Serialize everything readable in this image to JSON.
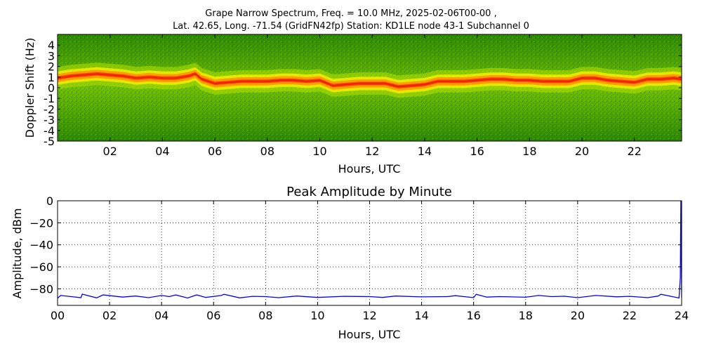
{
  "figure": {
    "title_line1": "Grape Narrow Spectrum, Freq. = 10.0 MHz, 2025-02-06T00-00 ,",
    "title_line2": "Lat.  42.65, Long. -71.54 (GridFN42fp) Station: KD1LE node 43-1 Subchannel 0"
  },
  "chart_data": [
    {
      "type": "heatmap",
      "title": "",
      "xlabel": "Hours, UTC",
      "ylabel": "Doppler Shift (Hz)",
      "xlim": [
        0,
        23.8
      ],
      "ylim": [
        -5,
        5
      ],
      "x_ticks": [
        2,
        4,
        6,
        8,
        10,
        12,
        14,
        16,
        18,
        20,
        22
      ],
      "x_tick_labels": [
        "02",
        "04",
        "06",
        "08",
        "10",
        "12",
        "14",
        "16",
        "18",
        "20",
        "22"
      ],
      "y_ticks": [
        -5,
        -4,
        -3,
        -2,
        -1,
        0,
        1,
        2,
        3,
        4
      ],
      "y_tick_labels": [
        "-5",
        "-4",
        "-3",
        "-2",
        "-1",
        "0",
        "1",
        "2",
        "3",
        "4"
      ],
      "grid": false,
      "colormap": [
        "#0a5a00",
        "#2e8b00",
        "#6fc000",
        "#b6e000",
        "#f2f000",
        "#ff9a00",
        "#ff3a00"
      ],
      "peak_doppler_trace": {
        "hours": [
          0,
          0.5,
          1,
          1.5,
          2,
          2.5,
          3,
          3.5,
          4,
          4.5,
          5,
          5.25,
          5.5,
          6,
          6.5,
          7,
          7.5,
          8,
          8.5,
          9,
          9.5,
          10,
          10.5,
          11,
          11.5,
          12,
          12.5,
          13,
          13.5,
          14,
          14.5,
          15,
          15.5,
          16,
          16.5,
          17,
          17.5,
          18,
          18.5,
          19,
          19.5,
          20,
          20.5,
          21,
          21.5,
          22,
          22.5,
          23,
          23.5,
          23.8
        ],
        "hz": [
          0.9,
          1.1,
          1.2,
          1.3,
          1.2,
          1.1,
          0.9,
          1.0,
          0.9,
          0.9,
          1.1,
          1.3,
          0.8,
          0.4,
          0.5,
          0.6,
          0.6,
          0.6,
          0.7,
          0.7,
          0.6,
          0.7,
          0.2,
          0.3,
          0.4,
          0.4,
          0.4,
          0.1,
          0.2,
          0.3,
          0.6,
          0.6,
          0.6,
          0.7,
          0.8,
          0.8,
          0.7,
          0.7,
          0.6,
          0.6,
          0.6,
          0.9,
          0.9,
          0.7,
          0.6,
          0.5,
          0.8,
          0.8,
          0.9,
          0.8
        ]
      }
    },
    {
      "type": "line",
      "title": "Peak Amplitude by Minute",
      "xlabel": "Hours, UTC",
      "ylabel": "Amplitude, dBm",
      "xlim": [
        0,
        24
      ],
      "ylim": [
        -95,
        0
      ],
      "x_ticks": [
        0,
        2,
        4,
        6,
        8,
        10,
        12,
        14,
        16,
        18,
        20,
        22,
        24
      ],
      "x_tick_labels": [
        "00",
        "02",
        "04",
        "06",
        "08",
        "10",
        "12",
        "14",
        "16",
        "18",
        "20",
        "22",
        "24"
      ],
      "y_ticks": [
        0,
        -20,
        -40,
        -60,
        -80
      ],
      "y_tick_labels": [
        "0",
        "−20",
        "−40",
        "−60",
        "−80"
      ],
      "grid": true,
      "series": [
        {
          "color": "#0000ff",
          "baseline_dbm": -88.5,
          "x": [
            0,
            0.12,
            0.9,
            0.95,
            1.5,
            1.75,
            2.5,
            3.0,
            3.5,
            4.0,
            4.3,
            4.55,
            5.0,
            5.35,
            5.7,
            6.3,
            6.4,
            7.0,
            7.5,
            8.0,
            8.5,
            9.2,
            10.0,
            11.0,
            12.0,
            12.5,
            13.0,
            14.0,
            15.0,
            15.3,
            16.0,
            16.1,
            16.5,
            17.0,
            18.0,
            18.5,
            19.0,
            19.5,
            20.0,
            20.7,
            21.5,
            22.0,
            22.7,
            23.1,
            23.2,
            23.9,
            23.95,
            23.97,
            24.0
          ],
          "y": [
            -88.5,
            -86.0,
            -88.0,
            -84.8,
            -88.2,
            -85.5,
            -87.5,
            -86.5,
            -88.0,
            -86.0,
            -87.0,
            -85.5,
            -88.3,
            -85.5,
            -87.8,
            -86.0,
            -84.9,
            -88.2,
            -86.8,
            -87.0,
            -88.0,
            -86.5,
            -87.8,
            -86.8,
            -87.0,
            -87.8,
            -86.5,
            -87.3,
            -87.0,
            -86.2,
            -88.0,
            -84.9,
            -87.5,
            -87.0,
            -87.6,
            -86.0,
            -87.0,
            -86.7,
            -88.0,
            -86.0,
            -87.2,
            -86.8,
            -88.0,
            -86.5,
            -84.9,
            -88.3,
            -70.0,
            0.0,
            -88.0
          ]
        }
      ]
    }
  ]
}
